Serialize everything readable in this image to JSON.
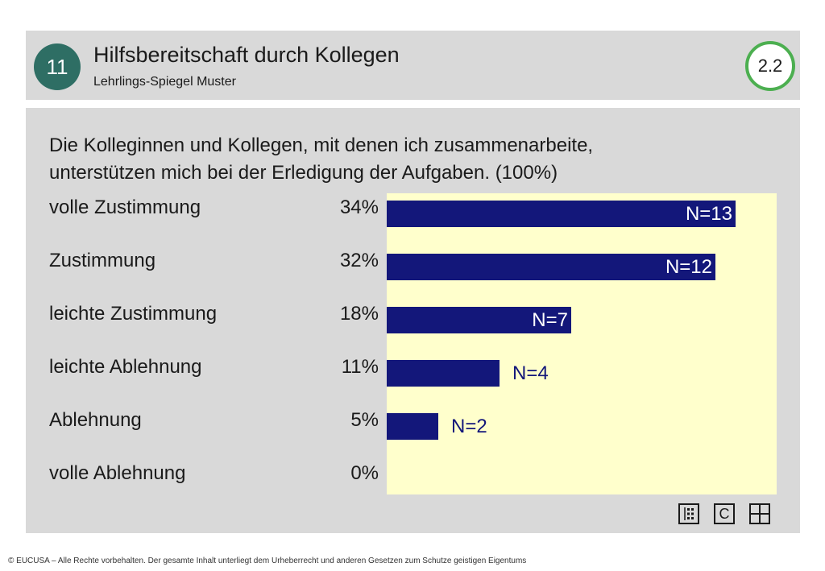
{
  "header": {
    "badge": "11",
    "title": "Hilfsbereitschaft durch Kollegen",
    "subtitle": "Lehrlings-Spiegel Muster",
    "version": "2.2"
  },
  "question": {
    "line1": "Die Kolleginnen und Kollegen, mit denen ich zusammenarbeite,",
    "line2": "unterstützen mich bei der Erledigung der Aufgaben. (100%)"
  },
  "chart_data": {
    "type": "bar",
    "orientation": "horizontal",
    "categories": [
      "volle Zustimmung",
      "Zustimmung",
      "leichte Zustimmung",
      "leichte Ablehnung",
      "Ablehnung",
      "volle Ablehnung"
    ],
    "percent_labels": [
      "34%",
      "32%",
      "18%",
      "11%",
      "5%",
      "0%"
    ],
    "values": [
      34,
      32,
      18,
      11,
      5,
      0
    ],
    "counts": [
      13,
      12,
      7,
      4,
      2,
      0
    ],
    "count_labels": [
      "N=13",
      "N=12",
      "N=7",
      "N=4",
      "N=2",
      ""
    ],
    "xlim": [
      0,
      38
    ],
    "grid": false,
    "bar_color": "#13177a",
    "plot_background": "#ffffcc"
  },
  "toolbar": {
    "icons": [
      "list-icon",
      "copyright-icon",
      "grid-icon"
    ],
    "copyright_letter": "C"
  },
  "footer": {
    "text": "© EUCUSA – Alle Rechte vorbehalten. Der gesamte Inhalt unterliegt dem Urheberrecht und anderen Gesetzen zum Schutze geistigen Eigentums"
  },
  "colors": {
    "badge": "#2e6e64",
    "version_ring": "#4caf50",
    "panel": "#d9d9d9"
  }
}
